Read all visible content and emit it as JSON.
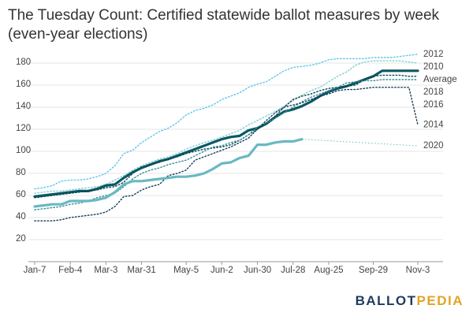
{
  "chart_data": {
    "type": "line",
    "title": "The Tuesday Count: Certified statewide ballot measures by week (even-year elections)",
    "logo": [
      "BALLOT",
      "PEDIA"
    ],
    "categories": [
      "Jan-7",
      null,
      null,
      null,
      "Feb-4",
      null,
      null,
      null,
      "Mar-3",
      null,
      null,
      null,
      "Mar-31",
      null,
      null,
      null,
      null,
      "May-5",
      null,
      null,
      null,
      "Jun-2",
      null,
      null,
      null,
      "Jun-30",
      null,
      null,
      null,
      "Jul-28",
      null,
      null,
      null,
      "Aug-25",
      null,
      null,
      null,
      null,
      "Sep-29",
      null,
      null,
      null,
      null,
      "Nov-3"
    ],
    "ylim": [
      0,
      190
    ],
    "yticks": [
      20,
      40,
      60,
      80,
      100,
      120,
      140,
      160,
      180
    ],
    "grid": true,
    "series": [
      {
        "name": "2012",
        "color": "#5cc6ea",
        "style": "dotted",
        "values": [
          66,
          67,
          69,
          73,
          74,
          74,
          75,
          77,
          80,
          87,
          98,
          101,
          108,
          113,
          118,
          121,
          126,
          133,
          137,
          139,
          142,
          147,
          150,
          153,
          158,
          161,
          163,
          168,
          173,
          176,
          177,
          178,
          180,
          183,
          184,
          184,
          184,
          184,
          185,
          185,
          185,
          186,
          187,
          188
        ]
      },
      {
        "name": "2010",
        "color": "#7fcfd6",
        "style": "dotted",
        "values": [
          62,
          63,
          64,
          64,
          65,
          66,
          67,
          68,
          70,
          74,
          78,
          83,
          87,
          90,
          93,
          95,
          98,
          102,
          105,
          108,
          110,
          113,
          116,
          119,
          124,
          128,
          132,
          136,
          141,
          146,
          151,
          155,
          158,
          163,
          168,
          172,
          178,
          181,
          182,
          182,
          182,
          182,
          181,
          180
        ]
      },
      {
        "name": "Average",
        "color": "#0b5963",
        "style": "solid",
        "values": [
          59,
          60,
          61,
          62,
          63,
          64,
          64,
          66,
          69,
          70,
          76,
          81,
          85,
          88,
          91,
          93,
          96,
          99,
          102,
          105,
          108,
          111,
          113,
          114,
          119,
          121,
          125,
          131,
          136,
          138,
          141,
          145,
          150,
          154,
          157,
          159,
          162,
          165,
          168,
          173,
          173,
          173,
          173,
          173
        ]
      },
      {
        "name": "2018",
        "color": "#0d4450",
        "style": "dotted",
        "values": [
          58,
          59,
          60,
          61,
          62,
          63,
          64,
          65,
          67,
          68,
          72,
          80,
          86,
          88,
          90,
          93,
          95,
          98,
          100,
          102,
          103,
          104,
          106,
          110,
          115,
          120,
          126,
          132,
          140,
          147,
          150,
          152,
          155,
          157,
          158,
          159,
          160,
          165,
          168,
          169,
          169,
          169,
          168,
          168
        ]
      },
      {
        "name": "2016",
        "color": "#2f8f95",
        "style": "dotted",
        "values": [
          47,
          48,
          49,
          50,
          52,
          53,
          55,
          58,
          60,
          62,
          68,
          75,
          80,
          83,
          85,
          88,
          90,
          92,
          96,
          100,
          104,
          105,
          108,
          110,
          115,
          122,
          126,
          130,
          135,
          140,
          145,
          149,
          152,
          155,
          158,
          162,
          163,
          164,
          164,
          165,
          165,
          165,
          165,
          165
        ]
      },
      {
        "name": "2014",
        "color": "#123c5a",
        "style": "dotted",
        "values": [
          37,
          37,
          37,
          38,
          40,
          41,
          42,
          43,
          45,
          50,
          59,
          60,
          65,
          68,
          70,
          78,
          80,
          83,
          92,
          95,
          98,
          101,
          104,
          108,
          112,
          120,
          128,
          135,
          140,
          142,
          144,
          147,
          150,
          152,
          155,
          156,
          156,
          157,
          158,
          158,
          158,
          158,
          158,
          124
        ]
      },
      {
        "name": "2020",
        "color": "#6ab8c2",
        "style": "solid",
        "bridge_gaps": true,
        "values": [
          50,
          51,
          52,
          52,
          55,
          55,
          55,
          56,
          58,
          63,
          70,
          73,
          73,
          74,
          75,
          76,
          77,
          77,
          78,
          80,
          84,
          89,
          90,
          94,
          96,
          106,
          106,
          108,
          109,
          109,
          111,
          null,
          null,
          null,
          null,
          null,
          null,
          null,
          null,
          null,
          null,
          null,
          null,
          105
        ]
      }
    ]
  }
}
